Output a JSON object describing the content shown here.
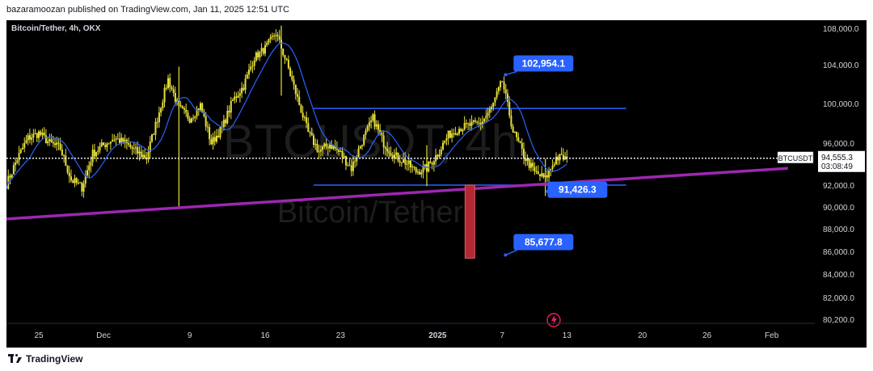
{
  "header": {
    "text": "bazaramoozan published on TradingView.com, Jan 11, 2025 12:51 UTC"
  },
  "footer": {
    "brand": "TradingView"
  },
  "chart_data": {
    "type": "candlestick",
    "title": "Bitcoin/Tether, 4h, OKX",
    "watermark": {
      "symbol": "BTCUSDT, 4h",
      "name": "Bitcoin/Tether"
    },
    "y_ticks": [
      "108,000.0",
      "104,000.0",
      "100,000.0",
      "96,000.0",
      "92,000.0",
      "90,000.0",
      "88,000.0",
      "86,000.0",
      "84,000.0",
      "82,000.0",
      "80,200.0"
    ],
    "y_tick_values": [
      108000,
      104000,
      100000,
      96000,
      92000,
      90000,
      88000,
      86000,
      84000,
      82000,
      80200
    ],
    "x_ticks": [
      "25",
      "Dec",
      "9",
      "16",
      "23",
      "2025",
      "7",
      "13",
      "20",
      "26",
      "Feb"
    ],
    "x_tick_days": [
      -6,
      0,
      8,
      15,
      22,
      31,
      37,
      43,
      50,
      56,
      62
    ],
    "x_range_days": [
      -9,
      66
    ],
    "last_price": {
      "symbol": "BTCUSDT",
      "price": "94,555.3",
      "countdown": "03:08:49",
      "value": 94555.3
    },
    "annotations": [
      {
        "label": "102,954.1",
        "value": 102954.1,
        "day": 37.3
      },
      {
        "label": "91,426.3",
        "value": 91426.3,
        "day": 41.2
      },
      {
        "label": "85,677.8",
        "value": 85677.8,
        "day": 37.3
      }
    ],
    "range_box": {
      "top": 99500,
      "bottom": 92000,
      "start_day": 19.5,
      "end_day": 48.5
    },
    "trendline": {
      "start_day": -9,
      "start_value": 88900,
      "end_day": 63.5,
      "end_value": 93600,
      "color": "#9c27b0"
    },
    "target_bar": {
      "day": 34,
      "top": 92000,
      "bottom": 85400,
      "color": "#b22833"
    },
    "candle_color": "#e6e03a",
    "ma_color": "#2962ff",
    "price_path": [
      [
        -9,
        92100
      ],
      [
        -8,
        94500
      ],
      [
        -7,
        96500
      ],
      [
        -6,
        97000
      ],
      [
        -5,
        96000
      ],
      [
        -4,
        95500
      ],
      [
        -3,
        92500
      ],
      [
        -2,
        91800
      ],
      [
        -1,
        95000
      ],
      [
        0,
        95800
      ],
      [
        1,
        96500
      ],
      [
        2,
        96000
      ],
      [
        3,
        95200
      ],
      [
        4,
        94600
      ],
      [
        5,
        98500
      ],
      [
        6,
        102500
      ],
      [
        7,
        99500
      ],
      [
        8,
        98500
      ],
      [
        9,
        99800
      ],
      [
        10,
        96000
      ],
      [
        11,
        97500
      ],
      [
        12,
        100300
      ],
      [
        13,
        101800
      ],
      [
        14,
        104800
      ],
      [
        15,
        105800
      ],
      [
        16,
        107500
      ],
      [
        17,
        104200
      ],
      [
        18,
        100500
      ],
      [
        19,
        97000
      ],
      [
        20,
        95200
      ],
      [
        21,
        95900
      ],
      [
        22,
        95000
      ],
      [
        23,
        93600
      ],
      [
        24,
        96200
      ],
      [
        25,
        98500
      ],
      [
        26,
        96000
      ],
      [
        27,
        94800
      ],
      [
        28,
        94200
      ],
      [
        29,
        93300
      ],
      [
        30,
        93600
      ],
      [
        31,
        95000
      ],
      [
        32,
        96800
      ],
      [
        33,
        97500
      ],
      [
        34,
        97800
      ],
      [
        35,
        98000
      ],
      [
        36,
        99500
      ],
      [
        37,
        102300
      ],
      [
        38,
        97200
      ],
      [
        39,
        94800
      ],
      [
        40,
        93200
      ],
      [
        41,
        92600
      ],
      [
        42,
        94600
      ],
      [
        43,
        94555
      ]
    ],
    "wicks": [
      {
        "day": 7,
        "low": 90000,
        "high": 103800
      },
      {
        "day": 16.5,
        "low": 100800,
        "high": 108300
      },
      {
        "day": 30,
        "low": 91900,
        "high": 95800
      },
      {
        "day": 41,
        "low": 91000,
        "high": 94500
      }
    ]
  }
}
